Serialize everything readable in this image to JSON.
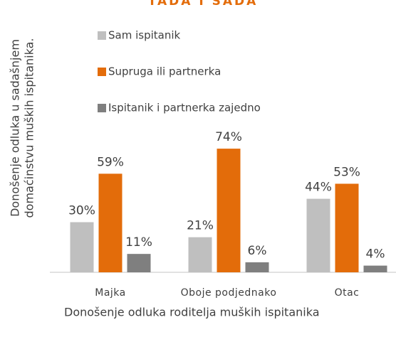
{
  "chart_data": {
    "type": "bar",
    "title": "TADA I SADA",
    "ylabel": [
      "Donošenje odluka u sadašnjem",
      "domaćinstvu muških ispitanika."
    ],
    "xlabel": "Donošenje odluka roditelja muških ispitanika",
    "categories": [
      "Majka",
      "Oboje podjednako",
      "Otac"
    ],
    "series": [
      {
        "name": "Sam ispitanik",
        "color": "#bfbfbf",
        "values": [
          30,
          21,
          44
        ],
        "value_labels": [
          "30%",
          "21%",
          "44%"
        ]
      },
      {
        "name": "Supruga ili partnerka",
        "color": "#e36c0a",
        "values": [
          59,
          74,
          53
        ],
        "value_labels": [
          "59%",
          "74%",
          "53%"
        ]
      },
      {
        "name": "Ispitanik i partnerka zajedno",
        "color": "#7f7f7f",
        "values": [
          11,
          6,
          4
        ],
        "value_labels": [
          "11%",
          "6%",
          "4%"
        ]
      }
    ],
    "ylim": [
      0,
      80
    ]
  }
}
